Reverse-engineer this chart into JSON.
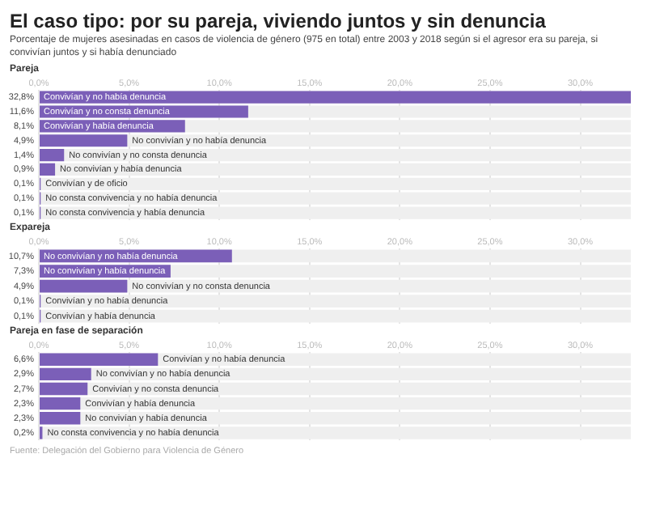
{
  "chart_data": [
    {
      "type": "bar",
      "orientation": "horizontal",
      "title": "El caso tipo: por su pareja, viviendo juntos y sin denuncia",
      "subtitle": "Porcentaje de mujeres asesinadas en casos de violencia de género (975 en total) entre 2003 y 2018 según si el agresor era su pareja, si convivían juntos y si había denunciado",
      "annotations": [
        "Pareja"
      ],
      "categories": [
        "Convivían y no había denuncia",
        "Convivían y no consta denuncia",
        "Convivían y había denuncia",
        "No convivían y no había denuncia",
        "No convivían y no consta denuncia",
        "No convivían y había denuncia",
        "Convivían y de oficio",
        "No consta convivencia y no había denuncia",
        "No consta convivencia y había denuncia"
      ],
      "values": [
        32.8,
        11.6,
        8.1,
        4.9,
        1.4,
        0.9,
        0.1,
        0.1,
        0.1
      ],
      "value_labels": [
        "32,8%",
        "11,6%",
        "8,1%",
        "4,9%",
        "1,4%",
        "0,9%",
        "0,1%",
        "0,1%",
        "0,1%"
      ],
      "color": "#7b5fb8",
      "xlim": [
        0,
        32.8
      ],
      "xticks": [
        {
          "value": 0,
          "label": "0,0%"
        },
        {
          "value": 5,
          "label": "5,0%"
        },
        {
          "value": 10,
          "label": "10,0%"
        },
        {
          "value": 15,
          "label": "15,0%"
        },
        {
          "value": 20,
          "label": "20,0%"
        },
        {
          "value": 25,
          "label": "25,0%"
        },
        {
          "value": 30,
          "label": "30,0%"
        }
      ],
      "grid": "x",
      "legend": false
    },
    {
      "type": "bar",
      "orientation": "horizontal",
      "title": "Expareja",
      "categories": [
        "No convivían y no había denuncia",
        "No convivían y había denuncia",
        "No convivían y no consta denuncia",
        "Convivían y no había denuncia",
        "Convivían y había denuncia"
      ],
      "values": [
        10.7,
        7.3,
        4.9,
        0.1,
        0.1
      ],
      "value_labels": [
        "10,7%",
        "7,3%",
        "4,9%",
        "0,1%",
        "0,1%"
      ],
      "color": "#7b5fb8",
      "xlim": [
        0,
        32.8
      ],
      "xticks": [
        {
          "value": 0,
          "label": "0,0%"
        },
        {
          "value": 5,
          "label": "5,0%"
        },
        {
          "value": 10,
          "label": "10,0%"
        },
        {
          "value": 15,
          "label": "15,0%"
        },
        {
          "value": 20,
          "label": "20,0%"
        },
        {
          "value": 25,
          "label": "25,0%"
        },
        {
          "value": 30,
          "label": "30,0%"
        }
      ],
      "grid": "x",
      "legend": false
    },
    {
      "type": "bar",
      "orientation": "horizontal",
      "title": "Pareja en fase de separación",
      "annotations": [
        "Fuente: Delegación del Gobierno para Violencia de Género"
      ],
      "categories": [
        "Convivían y no había denuncia",
        "No convivían y no había denuncia",
        "Convivían y no consta denuncia",
        "Convivían y había denuncia",
        "No convivían y había denuncia",
        "No consta convivencia y no había denuncia"
      ],
      "values": [
        6.6,
        2.9,
        2.7,
        2.3,
        2.3,
        0.2
      ],
      "value_labels": [
        "6,6%",
        "2,9%",
        "2,7%",
        "2,3%",
        "2,3%",
        "0,2%"
      ],
      "color": "#7b5fb8",
      "xlim": [
        0,
        32.8
      ],
      "xticks": [
        {
          "value": 0,
          "label": "0,0%"
        },
        {
          "value": 5,
          "label": "5,0%"
        },
        {
          "value": 10,
          "label": "10,0%"
        },
        {
          "value": 15,
          "label": "15,0%"
        },
        {
          "value": 20,
          "label": "20,0%"
        },
        {
          "value": 25,
          "label": "25,0%"
        },
        {
          "value": 30,
          "label": "30,0%"
        }
      ],
      "grid": "x",
      "legend": false
    }
  ]
}
